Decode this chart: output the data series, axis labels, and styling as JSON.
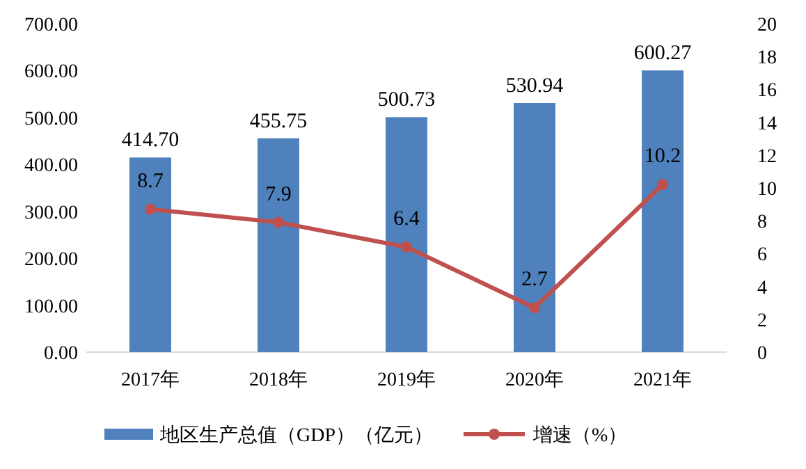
{
  "chart_data": {
    "type": "bar",
    "categories": [
      "2017年",
      "2018年",
      "2019年",
      "2020年",
      "2021年"
    ],
    "series": [
      {
        "name": "地区生产总值（GDP）（亿元）",
        "color": "#4f81bd",
        "values": [
          414.7,
          455.75,
          500.73,
          530.94,
          600.27
        ],
        "value_labels": [
          "414.70",
          "455.75",
          "500.73",
          "530.94",
          "600.27"
        ]
      },
      {
        "name": "增速（%）",
        "type": "line",
        "axis": "y2",
        "color": "#c0504d",
        "values": [
          8.7,
          7.9,
          6.4,
          2.7,
          10.2
        ],
        "value_labels": [
          "8.7",
          "7.9",
          "6.4",
          "2.7",
          "10.2"
        ]
      }
    ],
    "ylim": [
      0,
      700
    ],
    "yticks": [
      {
        "value": 0,
        "label": "0.00"
      },
      {
        "value": 100,
        "label": "100.00"
      },
      {
        "value": 200,
        "label": "200.00"
      },
      {
        "value": 300,
        "label": "300.00"
      },
      {
        "value": 400,
        "label": "400.00"
      },
      {
        "value": 500,
        "label": "500.00"
      },
      {
        "value": 600,
        "label": "600.00"
      },
      {
        "value": 700,
        "label": "700.00"
      }
    ],
    "y2lim": [
      0,
      20
    ],
    "y2ticks": [
      0,
      2,
      4,
      6,
      8,
      10,
      12,
      14,
      16,
      18,
      20
    ],
    "marker": "circle",
    "line_style": "solid",
    "legend": "bottom",
    "grid": false
  }
}
